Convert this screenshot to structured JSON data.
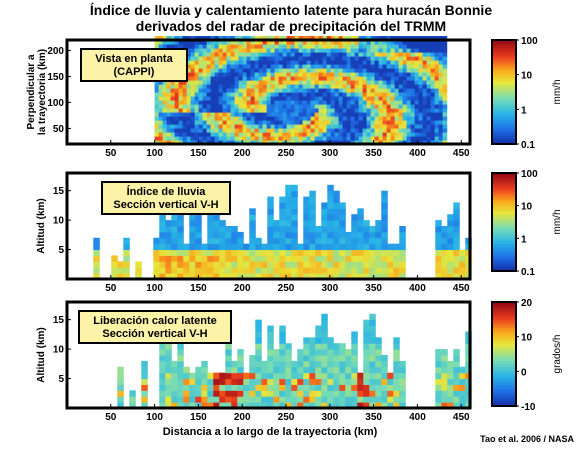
{
  "title_line1": "Índice de lluvia y calentamiento latente para huracán Bonnie",
  "title_line2": "derivados del radar de precipitación del TRMM",
  "xlabel": "Distancia a lo largo de la trayectoria (km)",
  "credit": "Tao et al. 2006 / NASA",
  "chart_data": [
    {
      "type": "heatmap",
      "label_box": [
        "Vista en planta",
        "(CAPPI)"
      ],
      "ylabel": [
        "Perpendicular a",
        "la trayectoria (km)"
      ],
      "xlim": [
        0,
        460
      ],
      "ylim": [
        20,
        220
      ],
      "xticks": [
        50,
        100,
        150,
        200,
        250,
        300,
        350,
        400,
        450
      ],
      "yticks": [
        50,
        100,
        150,
        200
      ],
      "colorbar": {
        "ticks": [
          "100",
          "10",
          "1",
          "0.1"
        ],
        "unit": "mm/h",
        "scale": "log",
        "range": [
          0.1,
          100
        ]
      }
    },
    {
      "type": "heatmap",
      "label_box": [
        "Índice de lluvia",
        "Sección vertical V-H"
      ],
      "ylabel": "Altitud (km)",
      "xlim": [
        0,
        460
      ],
      "ylim": [
        0,
        18
      ],
      "xticks": [
        50,
        100,
        150,
        200,
        250,
        300,
        350,
        400,
        450
      ],
      "yticks": [
        5,
        10,
        15
      ],
      "colorbar": {
        "ticks": [
          "100",
          "10",
          "1",
          "0.1"
        ],
        "unit": "mm/h",
        "scale": "log",
        "range": [
          0.1,
          100
        ]
      }
    },
    {
      "type": "heatmap",
      "label_box": [
        "Liberación calor latente",
        "Sección vertical V-H"
      ],
      "ylabel": "Altitud (km)",
      "xlim": [
        0,
        460
      ],
      "ylim": [
        0,
        18
      ],
      "xticks": [
        50,
        100,
        150,
        200,
        250,
        300,
        350,
        400,
        450
      ],
      "yticks": [
        5,
        10,
        15
      ],
      "colorbar": {
        "ticks": [
          "20",
          "10",
          "0",
          "-10"
        ],
        "unit": "grados/h",
        "scale": "linear",
        "range": [
          -10,
          20
        ]
      }
    }
  ]
}
